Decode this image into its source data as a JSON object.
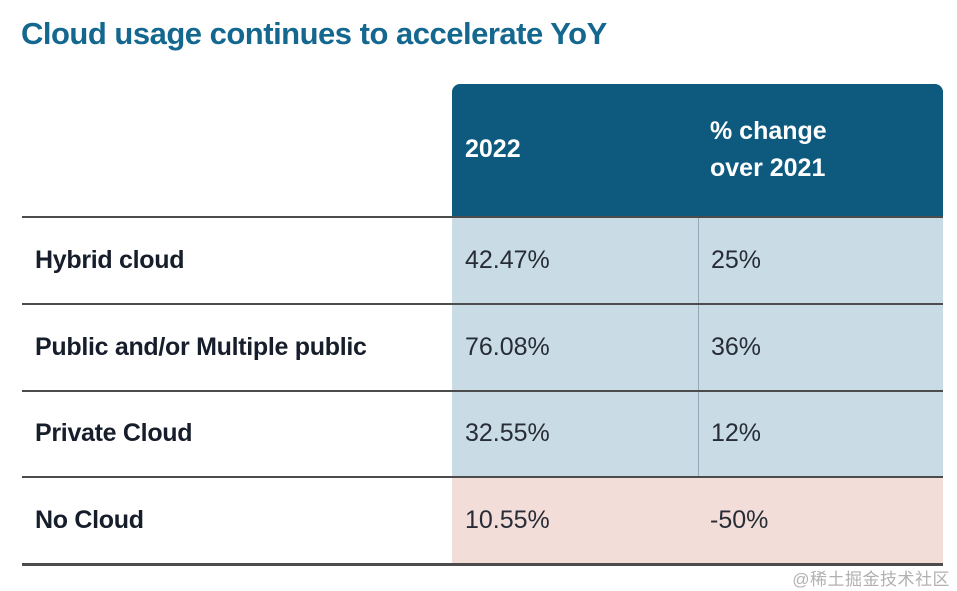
{
  "title": "Cloud usage continues to accelerate YoY",
  "table": {
    "header": {
      "year": "2022",
      "change": "% change\nover 2021"
    },
    "rows": [
      {
        "label": "Hybrid cloud",
        "value_2022": "42.47%",
        "change": "25%"
      },
      {
        "label": "Public and/or Multiple public",
        "value_2022": "76.08%",
        "change": "36%"
      },
      {
        "label": "Private Cloud",
        "value_2022": "32.55%",
        "change": "12%"
      },
      {
        "label": "No Cloud",
        "value_2022": "10.55%",
        "change": "-50%"
      }
    ]
  },
  "watermark": "@稀土掘金技术社区",
  "colors": {
    "title_text": "#14678f",
    "header_background": "#0d5a7e",
    "header_text": "#ffffff",
    "increase_cell_background": "#c9dce5",
    "decrease_cell_background": "#f2ddd9",
    "row_line": "#4c4c4c",
    "label_text": "#161e2b",
    "value_text": "#272c37",
    "watermark_text": "#b3b0b0"
  },
  "chart_data": {
    "type": "table",
    "title": "Cloud usage continues to accelerate YoY",
    "columns": [
      "",
      "2022",
      "% change over 2021"
    ],
    "categories": [
      "Hybrid cloud",
      "Public and/or Multiple public",
      "Private Cloud",
      "No Cloud"
    ],
    "series": [
      {
        "name": "2022",
        "unit": "%",
        "values": [
          42.47,
          76.08,
          32.55,
          10.55
        ]
      },
      {
        "name": "% change over 2021",
        "unit": "%",
        "values": [
          25,
          36,
          12,
          -50
        ]
      }
    ],
    "notes": "Rows with positive change have light blue value cells; the negative-change row (No Cloud) has light pink value cells."
  }
}
